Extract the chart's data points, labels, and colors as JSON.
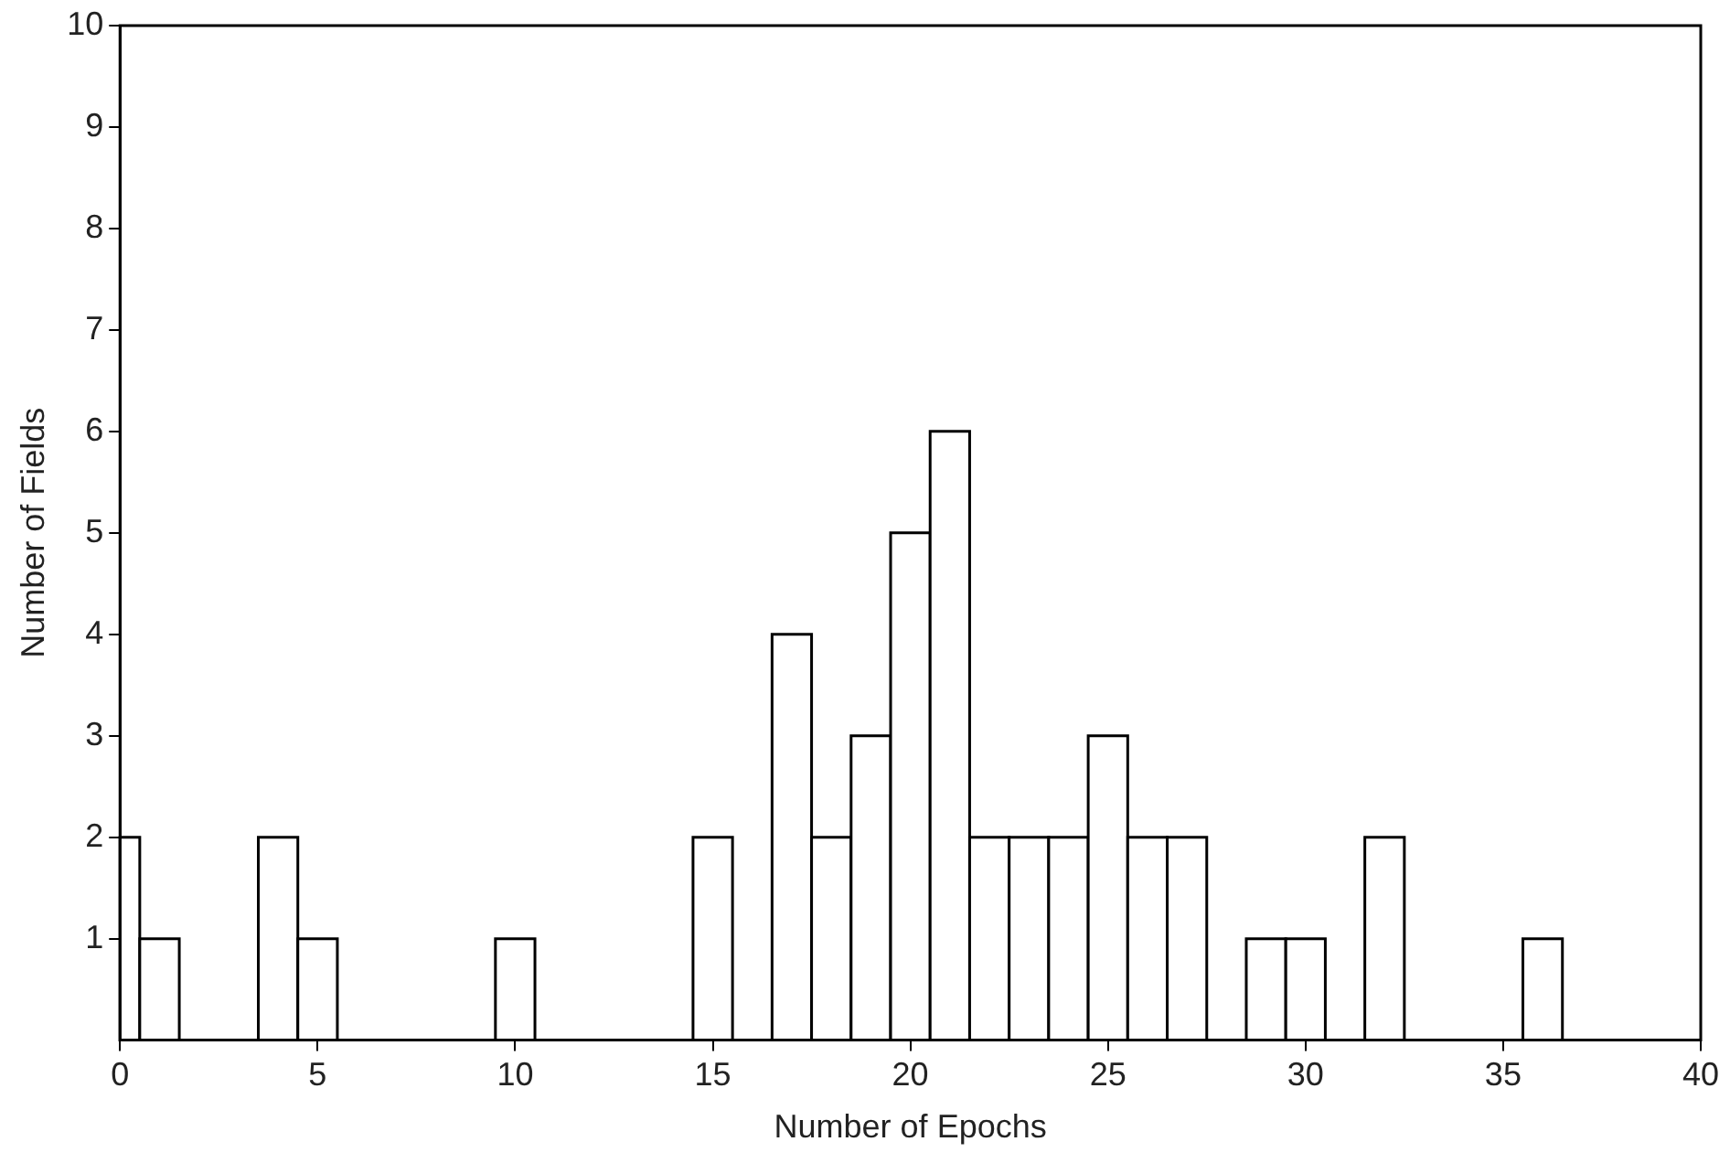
{
  "chart_data": {
    "type": "histogram",
    "xlabel": "Number of Epochs",
    "ylabel": "Number of Fields",
    "bins": [
      0,
      0.5,
      1.5,
      2.5,
      3.5,
      4.5,
      5.5,
      6.5,
      7.5,
      8.5,
      9.5,
      10.5,
      11.5,
      12.5,
      13.5,
      14.5,
      15.5,
      16.5,
      17.5,
      18.5,
      19.5,
      20.5,
      21.5,
      22.5,
      23.5,
      24.5,
      25.5,
      26.5,
      27.5,
      28.5,
      29.5,
      30.5,
      31.5,
      32.5,
      33.5,
      34.5,
      35.5,
      36.5
    ],
    "values": [
      2,
      1,
      0,
      0,
      2,
      1,
      0,
      0,
      0,
      0,
      1,
      0,
      0,
      0,
      0,
      2,
      0,
      4,
      2,
      3,
      5,
      6,
      2,
      2,
      2,
      3,
      2,
      2,
      0,
      1,
      1,
      0,
      2,
      0,
      0,
      0,
      1
    ],
    "color": "#000000",
    "xlim": [
      0,
      40
    ],
    "xticks": [
      0,
      5,
      10,
      15,
      20,
      25,
      30,
      35,
      40
    ],
    "ylim": [
      0,
      10
    ],
    "yticks": [
      1,
      2,
      3,
      4,
      5,
      6,
      7,
      8,
      9,
      10
    ],
    "grid": false,
    "legend": false
  }
}
